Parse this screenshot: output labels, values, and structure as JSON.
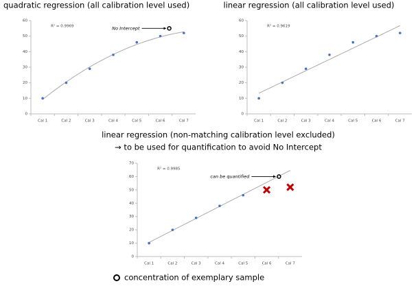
{
  "chart_data": [
    {
      "type": "scatter",
      "title": "quadratic regression (all calibration level used)",
      "fit": "quadratic",
      "categories": [
        "Cal 1",
        "Cal 2",
        "Cal 3",
        "Cal 4",
        "Cal 5",
        "Cal 6",
        "Cal 7"
      ],
      "values": [
        10,
        20,
        29,
        38,
        46,
        50,
        52
      ],
      "color": "#4472c4",
      "point_styles": [
        "dot",
        "dot",
        "dot",
        "dot",
        "dot",
        "dot",
        "dot"
      ],
      "ylim": [
        0,
        60
      ],
      "yticks": [
        0,
        10,
        20,
        30,
        40,
        50,
        60
      ],
      "r2": "R² = 0.9969",
      "annotation": "No Intercept",
      "sample": {
        "y": 55
      }
    },
    {
      "type": "scatter",
      "title": "linear regression (all calibration level used)",
      "fit": "linear",
      "categories": [
        "Cal 1",
        "Cal 2",
        "Cal 3",
        "Cal 4",
        "Cal 5",
        "Cal 6",
        "Cal 7"
      ],
      "values": [
        10,
        20,
        29,
        38,
        46,
        50,
        52
      ],
      "color": "#4472c4",
      "point_styles": [
        "dot",
        "dot",
        "dot",
        "dot",
        "dot",
        "dot",
        "dot"
      ],
      "ylim": [
        0,
        60
      ],
      "yticks": [
        0,
        10,
        20,
        30,
        40,
        50,
        60
      ],
      "r2": "R² = 0.9619"
    },
    {
      "type": "scatter",
      "title": "linear regression (non-matching calibration level excluded)",
      "subtitle": "→ to be used for quantification to avoid No Intercept",
      "fit": "linear",
      "categories": [
        "Cal 1",
        "Cal 2",
        "Cal 3",
        "Cal 4",
        "Cal 5",
        "Cal 6",
        "Cal 7"
      ],
      "values": [
        10,
        20,
        29,
        38,
        46,
        50,
        52
      ],
      "color": "#4472c4",
      "cross_color": "#c00000",
      "point_styles": [
        "dot",
        "dot",
        "dot",
        "dot",
        "dot",
        "cross",
        "cross"
      ],
      "ylim": [
        0,
        70
      ],
      "yticks": [
        0,
        10,
        20,
        30,
        40,
        50,
        60,
        70
      ],
      "r2": "R² = 0.9985",
      "annotation": "can be quantified",
      "sample": {
        "y": 60
      }
    }
  ],
  "caption": "concentration of exemplary sample"
}
